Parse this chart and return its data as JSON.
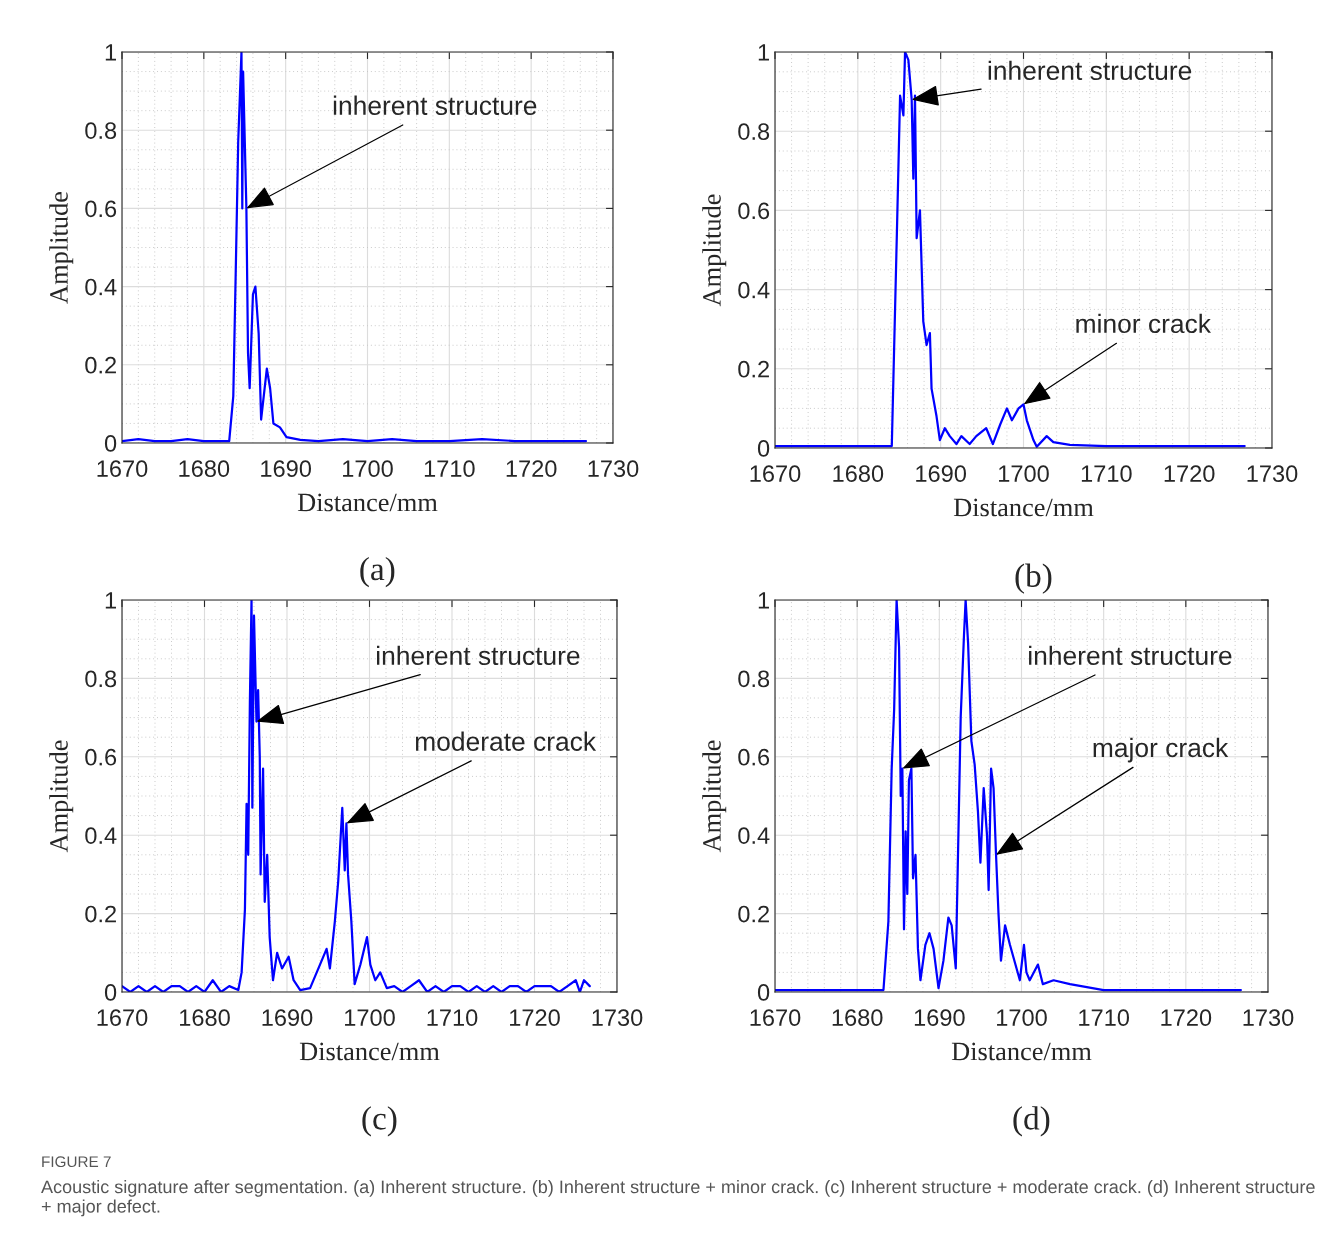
{
  "chart_data": [
    {
      "type": "line",
      "title": "(a)",
      "xlabel": "Distance/mm",
      "ylabel": "Amplitude",
      "xlim": [
        1670,
        1730
      ],
      "ylim": [
        0,
        1
      ],
      "xticks": [
        1670,
        1680,
        1690,
        1700,
        1710,
        1720,
        1730
      ],
      "yticks": [
        0,
        0.2,
        0.4,
        0.6,
        0.8,
        1
      ],
      "grid": true,
      "line_style": "solid",
      "series": [
        {
          "color": "#0000ff",
          "x": [
            1670,
            1672,
            1674,
            1676,
            1678,
            1680,
            1682,
            1683.1,
            1683.6,
            1683.9,
            1684.2,
            1684.6,
            1684.7,
            1684.8,
            1685.2,
            1685.4,
            1685.6,
            1686.0,
            1686.3,
            1686.7,
            1687.0,
            1687.7,
            1688.1,
            1688.5,
            1689.3,
            1690.1,
            1691.8,
            1694,
            1697,
            1700,
            1703,
            1706,
            1710,
            1714,
            1718,
            1722,
            1726.7
          ],
          "values": [
            0.005,
            0.01,
            0.005,
            0.005,
            0.01,
            0.005,
            0.005,
            0.005,
            0.12,
            0.44,
            0.77,
            1.0,
            0.6,
            0.95,
            0.6,
            0.23,
            0.14,
            0.38,
            0.4,
            0.28,
            0.06,
            0.19,
            0.14,
            0.05,
            0.04,
            0.015,
            0.008,
            0.005,
            0.01,
            0.005,
            0.01,
            0.005,
            0.005,
            0.01,
            0.005,
            0.005,
            0.005
          ]
        }
      ],
      "annotations": [
        {
          "text": "inherent structure",
          "x": 1685.2,
          "y": 0.6
        },
        "FIGURE 7",
        "Acoustic signature after segmentation. (a) Inherent structure. (b) Inherent structure + minor crack. (c) Inherent structure + moderate crack. (d) Inherent structure + major defect."
      ]
    },
    {
      "type": "line",
      "title": "(b)",
      "xlabel": "Distance/mm",
      "ylabel": "Amplitude",
      "xlim": [
        1670,
        1730
      ],
      "ylim": [
        0,
        1
      ],
      "xticks": [
        1670,
        1680,
        1690,
        1700,
        1710,
        1720,
        1730
      ],
      "yticks": [
        0,
        0.2,
        0.4,
        0.6,
        0.8,
        1
      ],
      "grid": true,
      "line_style": "solid",
      "series": [
        {
          "color": "#0000ff",
          "x": [
            1670,
            1674,
            1678,
            1682,
            1684.1,
            1684.7,
            1685.1,
            1685.5,
            1685.7,
            1686.1,
            1686.5,
            1686.7,
            1686.9,
            1687.1,
            1687.5,
            1687.9,
            1688.3,
            1688.7,
            1688.9,
            1689.5,
            1689.9,
            1690.5,
            1691.1,
            1691.9,
            1692.5,
            1693.5,
            1694.3,
            1695.5,
            1696.3,
            1697.2,
            1698.0,
            1698.6,
            1699.4,
            1700.0,
            1700.4,
            1701.2,
            1701.6,
            1702.8,
            1703.6,
            1705.6,
            1710,
            1715,
            1720,
            1726.7
          ],
          "values": [
            0.005,
            0.005,
            0.005,
            0.005,
            0.005,
            0.53,
            0.89,
            0.84,
            1.0,
            0.98,
            0.88,
            0.68,
            0.89,
            0.53,
            0.6,
            0.32,
            0.26,
            0.29,
            0.15,
            0.08,
            0.02,
            0.05,
            0.03,
            0.01,
            0.03,
            0.01,
            0.03,
            0.05,
            0.01,
            0.06,
            0.1,
            0.07,
            0.1,
            0.11,
            0.07,
            0.02,
            0.003,
            0.03,
            0.015,
            0.008,
            0.005,
            0.005,
            0.005,
            0.005
          ]
        }
      ],
      "annotations": [
        {
          "text": "inherent structure",
          "x": 1686.5,
          "y": 0.88
        },
        {
          "text": "minor crack",
          "x": 1700.0,
          "y": 0.11
        }
      ]
    },
    {
      "type": "line",
      "title": "(c)",
      "xlabel": "Distance/mm",
      "ylabel": "Amplitude",
      "xlim": [
        1670,
        1730
      ],
      "ylim": [
        0,
        1
      ],
      "xticks": [
        1670,
        1680,
        1690,
        1700,
        1710,
        1720,
        1730
      ],
      "yticks": [
        0,
        0.2,
        0.4,
        0.6,
        0.8,
        1
      ],
      "grid": true,
      "line_style": "solid",
      "series": [
        {
          "color": "#0000ff",
          "x": [
            1670,
            1671,
            1672,
            1673,
            1674,
            1675,
            1676,
            1677,
            1678,
            1679,
            1680,
            1681,
            1682,
            1683,
            1684.1,
            1684.5,
            1684.9,
            1685.1,
            1685.3,
            1685.5,
            1685.7,
            1685.8,
            1686.0,
            1686.3,
            1686.5,
            1686.7,
            1686.8,
            1687.1,
            1687.3,
            1687.6,
            1687.9,
            1688.3,
            1688.8,
            1689.4,
            1690.2,
            1690.8,
            1691.6,
            1692.8,
            1694.0,
            1694.8,
            1695.2,
            1695.8,
            1696.2,
            1696.7,
            1697.0,
            1697.2,
            1697.4,
            1697.8,
            1698.2,
            1698.9,
            1699.7,
            1700.1,
            1700.7,
            1701.3,
            1702.1,
            1703,
            1704,
            1705,
            1706,
            1707,
            1708,
            1709,
            1710,
            1711,
            1712,
            1713,
            1714,
            1715,
            1716,
            1717,
            1718,
            1719,
            1720,
            1721,
            1722,
            1723,
            1724,
            1725,
            1725.5,
            1726,
            1726.7
          ],
          "values": [
            0.015,
            0,
            0.015,
            0,
            0.015,
            0,
            0.015,
            0.015,
            0,
            0.015,
            0,
            0.03,
            0,
            0.015,
            0.005,
            0.05,
            0.21,
            0.48,
            0.35,
            0.74,
            1.0,
            0.47,
            0.96,
            0.69,
            0.77,
            0.6,
            0.3,
            0.57,
            0.23,
            0.35,
            0.14,
            0.03,
            0.1,
            0.06,
            0.09,
            0.03,
            0.005,
            0.01,
            0.07,
            0.11,
            0.06,
            0.18,
            0.28,
            0.47,
            0.31,
            0.43,
            0.3,
            0.18,
            0.02,
            0.07,
            0.14,
            0.07,
            0.03,
            0.05,
            0.01,
            0.015,
            0,
            0.015,
            0.03,
            0,
            0.015,
            0,
            0.015,
            0.015,
            0,
            0.015,
            0,
            0.015,
            0,
            0.015,
            0.015,
            0,
            0.015,
            0.015,
            0.015,
            0,
            0.015,
            0.03,
            0,
            0.03,
            0.015
          ]
        }
      ],
      "annotations": [
        {
          "text": "inherent structure",
          "x": 1686.3,
          "y": 0.69
        },
        {
          "text": "moderate crack",
          "x": 1697.2,
          "y": 0.43
        }
      ]
    },
    {
      "type": "line",
      "title": "(d)",
      "xlabel": "Distance/mm",
      "ylabel": "Amplitude",
      "xlim": [
        1670,
        1730
      ],
      "ylim": [
        0,
        1
      ],
      "xticks": [
        1670,
        1680,
        1690,
        1700,
        1710,
        1720,
        1730
      ],
      "yticks": [
        0,
        0.2,
        0.4,
        0.6,
        0.8,
        1
      ],
      "grid": true,
      "line_style": "solid",
      "series": [
        {
          "color": "#0000ff",
          "x": [
            1670,
            1674,
            1678,
            1682,
            1683.2,
            1683.8,
            1684.2,
            1684.5,
            1684.8,
            1685.1,
            1685.3,
            1685.5,
            1685.7,
            1685.9,
            1686.1,
            1686.3,
            1686.6,
            1686.8,
            1687.1,
            1687.4,
            1687.7,
            1688.3,
            1688.8,
            1689.3,
            1689.9,
            1690.5,
            1691.1,
            1691.5,
            1692.0,
            1692.3,
            1692.6,
            1693.0,
            1693.2,
            1693.5,
            1693.9,
            1694.3,
            1694.7,
            1695.0,
            1695.4,
            1695.8,
            1696.0,
            1696.3,
            1696.6,
            1696.9,
            1697.2,
            1697.5,
            1698.0,
            1698.6,
            1699.4,
            1699.8,
            1700.3,
            1700.6,
            1701.0,
            1702.0,
            1702.6,
            1703.9,
            1705.9,
            1710,
            1715,
            1720,
            1726.7
          ],
          "values": [
            0.005,
            0.005,
            0.005,
            0.005,
            0.005,
            0.18,
            0.57,
            0.72,
            1.0,
            0.88,
            0.5,
            0.57,
            0.16,
            0.41,
            0.25,
            0.54,
            0.57,
            0.29,
            0.35,
            0.11,
            0.03,
            0.12,
            0.15,
            0.11,
            0.01,
            0.08,
            0.19,
            0.17,
            0.06,
            0.38,
            0.7,
            0.91,
            1.0,
            0.89,
            0.64,
            0.58,
            0.46,
            0.33,
            0.52,
            0.4,
            0.26,
            0.57,
            0.52,
            0.35,
            0.2,
            0.08,
            0.17,
            0.12,
            0.06,
            0.03,
            0.12,
            0.05,
            0.03,
            0.07,
            0.02,
            0.03,
            0.02,
            0.005,
            0.005,
            0.005,
            0.005
          ]
        }
      ],
      "annotations": [
        {
          "text": "inherent structure",
          "x": 1685.5,
          "y": 0.57
        },
        {
          "text": "major crack",
          "x": 1696.9,
          "y": 0.35
        }
      ]
    }
  ]
}
